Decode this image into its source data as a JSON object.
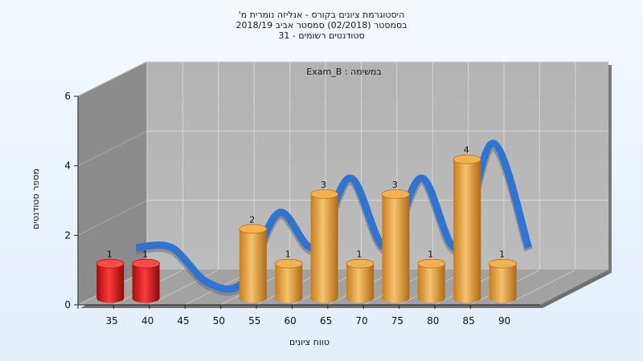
{
  "chart_data": {
    "type": "bar",
    "title_lines": [
      "היסטוגרמת ציונים בקורס - אנליזה נומרית מ'",
      "בסמסטר  (02/2018)  סמסטר אביב 2018/19",
      "סטודנטים רשומים - 31"
    ],
    "subtitle": "Exam_B : במשימה",
    "xlabel": "טווח ציונים",
    "ylabel": "מספר סטודנטים",
    "categories": [
      "35",
      "40",
      "45",
      "50",
      "55",
      "60",
      "65",
      "70",
      "75",
      "80",
      "85",
      "90"
    ],
    "values": [
      1,
      1,
      0,
      0,
      2,
      1,
      3,
      1,
      3,
      1,
      4,
      1
    ],
    "bar_colors": [
      "#e21b1b",
      "#e21b1b",
      "#e89a2c",
      "#e89a2c",
      "#e89a2c",
      "#e89a2c",
      "#e89a2c",
      "#e89a2c",
      "#e89a2c",
      "#e89a2c",
      "#e89a2c",
      "#e89a2c"
    ],
    "yticks": [
      0,
      2,
      4,
      6
    ],
    "ylim": [
      0,
      6
    ],
    "grid": true,
    "ribbon": {
      "color": "#2f74d0",
      "shadow_color": "#707070"
    },
    "colors": {
      "wall_back": "#b5b5b5",
      "wall_left": "#8c8c8c",
      "floor": "#a2a2a2"
    }
  }
}
